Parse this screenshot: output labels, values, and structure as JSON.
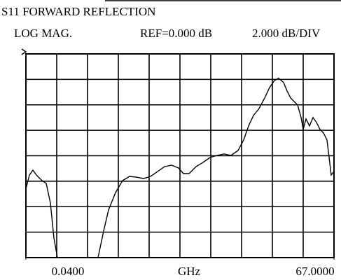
{
  "chart_data": {
    "type": "line",
    "title": "S11 FORWARD REFLECTION",
    "format": "LOG MAG.",
    "reference": "REF=0.000 dB",
    "scale": "2.000 dB/DIV",
    "x_unit": "GHz",
    "xlim": [
      0.04,
      67
    ],
    "ylim": [
      -16,
      0
    ],
    "xticks": [
      {
        "value": 0.04,
        "label": "0.0400"
      },
      {
        "value": 67,
        "label": "67.0000"
      }
    ],
    "xdivisions": 10,
    "ydivisions": 8,
    "grid": true,
    "series": [
      {
        "color": "#000000",
        "x": [
          0.04,
          0.8,
          1.56,
          2.32,
          3.54,
          4.45,
          5.37,
          6.13,
          6.89,
          11.0,
          15.71,
          16.93,
          18.0,
          19.52,
          21.04,
          22.56,
          24.08,
          25.61,
          27.13,
          28.65,
          30.17,
          31.69,
          33.22,
          34.28,
          35.5,
          37.02,
          38.54,
          40.06,
          41.58,
          43.11,
          44.63,
          46.15,
          47.37,
          48.43,
          49.5,
          50.71,
          51.93,
          53.0,
          54.06,
          54.97,
          56.04,
          56.8,
          57.56,
          58.32,
          59.09,
          59.85,
          60.3,
          60.91,
          61.67,
          62.43,
          63.19,
          63.96,
          64.72,
          65.48,
          65.93,
          66.39,
          67.0
        ],
        "values": [
          -10.61,
          -9.51,
          -9.13,
          -9.51,
          -9.95,
          -10.17,
          -11.71,
          -14.46,
          -16,
          null,
          -16,
          -13.91,
          -12.26,
          -10.89,
          -9.95,
          -9.62,
          -9.68,
          -9.79,
          -9.62,
          -9.24,
          -8.85,
          -8.74,
          -8.96,
          -9.4,
          -9.4,
          -8.85,
          -8.52,
          -8.14,
          -7.97,
          -7.86,
          -7.97,
          -7.59,
          -6.76,
          -5.66,
          -4.84,
          -4.29,
          -3.46,
          -2.64,
          -2.09,
          -1.92,
          -2.25,
          -2.91,
          -3.46,
          -3.74,
          -4.01,
          -5.0,
          -5.94,
          -5.11,
          -5.66,
          -5.0,
          -5.38,
          -5.94,
          -6.21,
          -6.76,
          -8.14,
          -9.51,
          -9.24
        ]
      }
    ]
  }
}
